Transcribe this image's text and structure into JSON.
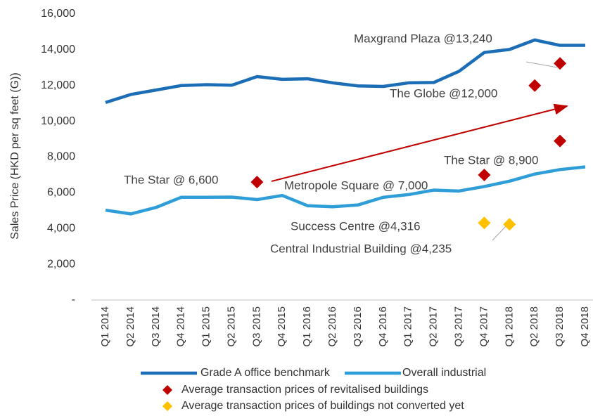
{
  "chart_data": {
    "type": "line",
    "y_axis_label": "Sales Price (HKD per sq feet (G))",
    "categories": [
      "Q1 2014",
      "Q2 2014",
      "Q3 2014",
      "Q4 2014",
      "Q1 2015",
      "Q2 2015",
      "Q3 2015",
      "Q4 2015",
      "Q1 2016",
      "Q2 2016",
      "Q3 2016",
      "Q4 2016",
      "Q1 2017",
      "Q2 2017",
      "Q3 2017",
      "Q4 2017",
      "Q1 2018",
      "Q2 2018",
      "Q3 2018",
      "Q4 2018"
    ],
    "ylim": [
      0,
      16000
    ],
    "yticks": [
      {
        "value": 0,
        "label": "-"
      },
      {
        "value": 2000,
        "label": "2,000"
      },
      {
        "value": 4000,
        "label": "4,000"
      },
      {
        "value": 6000,
        "label": "6,000"
      },
      {
        "value": 8000,
        "label": "8,000"
      },
      {
        "value": 10000,
        "label": "10,000"
      },
      {
        "value": 12000,
        "label": "12,000"
      },
      {
        "value": 14000,
        "label": "14,000"
      },
      {
        "value": 16000,
        "label": "16,000"
      }
    ],
    "grid": false,
    "series": [
      {
        "name": "Grade A office benchmark",
        "color": "#1b6db5",
        "values": [
          11050,
          11500,
          11750,
          12000,
          12050,
          12020,
          12500,
          12350,
          12380,
          12150,
          11980,
          11950,
          12150,
          12170,
          12800,
          13850,
          14020,
          14550,
          14250,
          14250
        ]
      },
      {
        "name": "Overall industrial",
        "color": "#2f9ed8",
        "values": [
          5030,
          4820,
          5180,
          5750,
          5750,
          5760,
          5620,
          5850,
          5280,
          5220,
          5320,
          5750,
          5900,
          6150,
          6100,
          6350,
          6650,
          7050,
          7300,
          7450
        ]
      },
      {
        "name": "Average transaction prices of revitalised buildings",
        "color": "#c00000",
        "type": "scatter",
        "categories": [
          "Q3 2015",
          "Q4 2017",
          "Q3 2018",
          "Q2 2018",
          "Q3 2018"
        ],
        "values": [
          6600,
          7000,
          8900,
          12000,
          13240
        ],
        "labels": [
          "The Star @ 6,600",
          "Metropole Square @ 7,000",
          "The Star @ 8,900",
          "The Globe @12,000",
          "Maxgrand Plaza @13,240"
        ]
      },
      {
        "name": "Average transaction prices of buildings not converted yet",
        "color": "#ffc000",
        "type": "scatter",
        "categories": [
          "Q4 2017",
          "Q1 2018"
        ],
        "values": [
          4316,
          4235
        ],
        "labels": [
          "Success Centre @4,316",
          "Central Industrial Building @4,235"
        ]
      }
    ]
  }
}
